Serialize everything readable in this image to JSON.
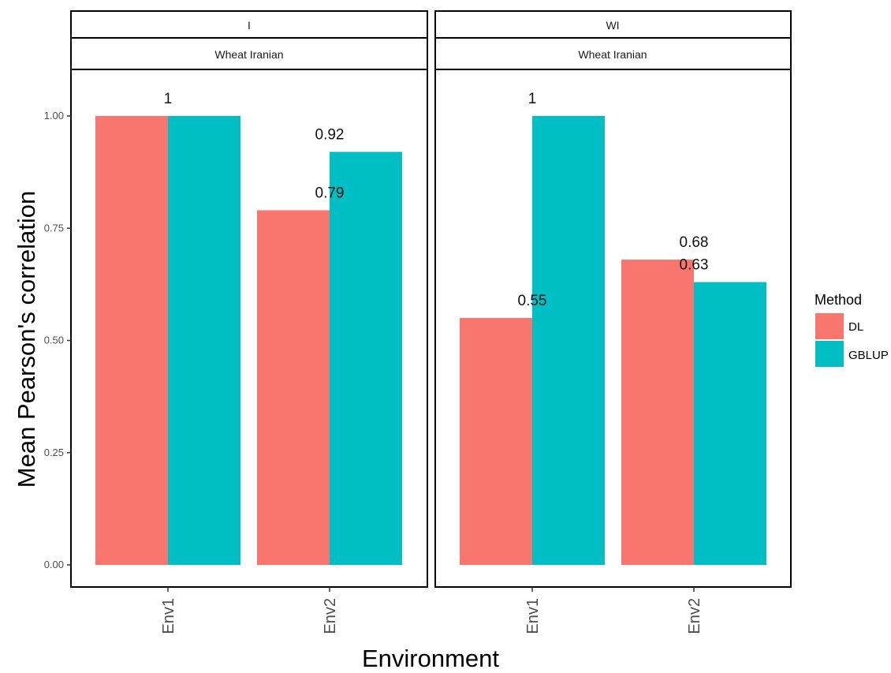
{
  "chart_data": {
    "type": "bar",
    "xlabel": "Environment",
    "ylabel": "Mean Pearson's correlation",
    "ylim": [
      0,
      1.0
    ],
    "yticks": [
      0.0,
      0.25,
      0.5,
      0.75,
      1.0
    ],
    "ytick_labels": [
      "0.00",
      "0.25",
      "0.50",
      "0.75",
      "1.00"
    ],
    "categories": [
      "Env1",
      "Env2"
    ],
    "grid": false,
    "legend": {
      "title": "Method",
      "placement": "right",
      "entries": [
        {
          "name": "DL",
          "color": "#F8766D"
        },
        {
          "name": "GBLUP",
          "color": "#00BFC4"
        }
      ]
    },
    "panels": [
      {
        "strip_top": "I",
        "strip_bottom": "Wheat Iranian",
        "series": [
          {
            "name": "DL",
            "values": [
              1.0,
              0.79
            ],
            "labels": [
              "1",
              "0.79"
            ]
          },
          {
            "name": "GBLUP",
            "values": [
              1.0,
              0.92
            ],
            "labels": [
              "",
              "0.92"
            ]
          }
        ]
      },
      {
        "strip_top": "WI",
        "strip_bottom": "Wheat Iranian",
        "series": [
          {
            "name": "DL",
            "values": [
              0.55,
              0.68
            ],
            "labels": [
              "0.55",
              "0.68"
            ]
          },
          {
            "name": "GBLUP",
            "values": [
              1.0,
              0.63
            ],
            "labels": [
              "1",
              "0.63"
            ]
          }
        ]
      }
    ]
  }
}
